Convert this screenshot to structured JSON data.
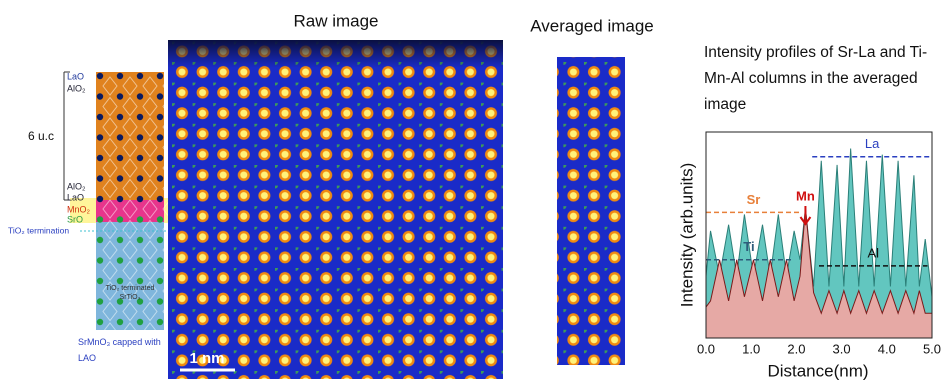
{
  "titles": {
    "raw": "Raw image",
    "averaged": "Averaged image",
    "scale_bar": "1 nm"
  },
  "schematic": {
    "top_laO": "LaO",
    "top_alO2": "AlO₂",
    "unit_cells": "6 u.c",
    "bottom_alO2": "AlO₂",
    "bottom_laO": "LaO",
    "mnO2": "MnO₂",
    "srO": "SrO",
    "termination": "TiO₂ termination",
    "substrate_line1": "TiO₂ terminated",
    "substrate_line2": "SrTiO₃",
    "caption": "SrMnO₃ capped with LAO"
  },
  "chart_data": {
    "type": "area",
    "title": "Intensity profiles of Sr-La and Ti-Mn-Al columns in the averaged image",
    "x_label": "Distance(nm)",
    "y_label": "Intensity (arb.units)",
    "x": [
      0.0,
      0.1,
      0.3,
      0.5,
      0.68,
      0.85,
      1.05,
      1.25,
      1.42,
      1.6,
      1.78,
      1.95,
      2.08,
      2.2,
      2.38,
      2.55,
      2.72,
      2.9,
      3.05,
      3.2,
      3.38,
      3.55,
      3.72,
      3.9,
      4.08,
      4.25,
      4.42,
      4.6,
      4.72,
      4.85,
      5.0
    ],
    "series": [
      {
        "color": "#62c6bf",
        "values": [
          30,
          52,
          30,
          55,
          30,
          60,
          30,
          55,
          30,
          60,
          30,
          52,
          38,
          63,
          25,
          86,
          25,
          84,
          25,
          92,
          25,
          86,
          25,
          89,
          25,
          86,
          25,
          79,
          25,
          48,
          20
        ]
      },
      {
        "color": "#f5a5a2",
        "values": [
          15,
          18,
          38,
          18,
          38,
          20,
          38,
          18,
          38,
          20,
          38,
          18,
          30,
          63,
          22,
          12,
          23,
          12,
          23,
          12,
          23,
          12,
          23,
          12,
          23,
          12,
          23,
          12,
          23,
          12,
          12
        ]
      }
    ],
    "reference_lines": [
      {
        "label": "Sr",
        "value": 61,
        "x_range": [
          0,
          2.1
        ],
        "color": "#e8803a"
      },
      {
        "label": "La",
        "value": 88,
        "x_range": [
          2.35,
          5.0
        ],
        "color": "#2a3fc0"
      },
      {
        "label": "Ti",
        "value": 38,
        "x_range": [
          0,
          1.9
        ],
        "color": "#2d5b7a"
      },
      {
        "label": "Al",
        "value": 35,
        "x_range": [
          2.5,
          4.9
        ],
        "color": "#111111"
      }
    ],
    "annotation": {
      "label": "Mn",
      "x": 2.2,
      "color": "#d01010"
    },
    "xlim": [
      0,
      5
    ],
    "ylim": [
      0,
      100
    ],
    "xticks": [
      {
        "value": 0,
        "label": "0.0"
      },
      {
        "value": 1,
        "label": "1.0"
      },
      {
        "value": 2,
        "label": "2.0"
      },
      {
        "value": 3,
        "label": "3.0"
      },
      {
        "value": 4,
        "label": "4.0"
      },
      {
        "value": 5,
        "label": "5.0"
      }
    ]
  }
}
